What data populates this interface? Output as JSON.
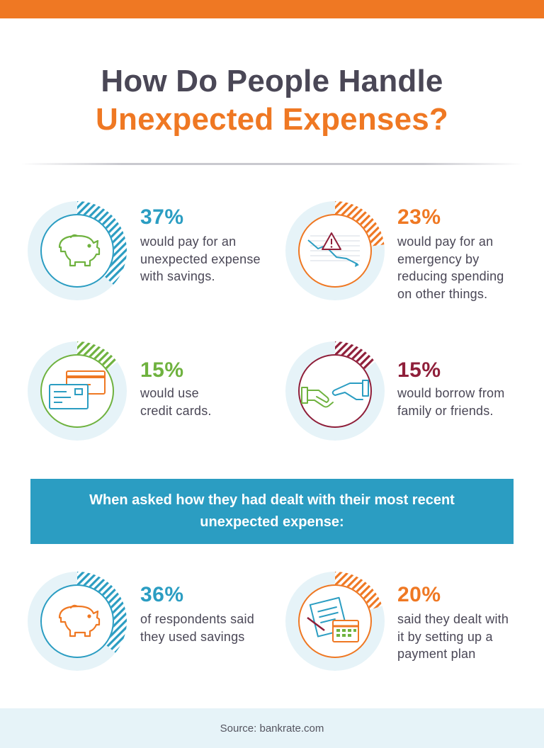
{
  "header": {
    "title_line1": "How Do People Handle",
    "title_line2": "Unexpected Expenses?"
  },
  "colors": {
    "blue": "#2b9dc2",
    "orange": "#ef7823",
    "green": "#6fb23f",
    "maroon": "#8f1f3a",
    "dark_text": "#4a4756",
    "light_circle": "#e6f3f8"
  },
  "stats": [
    {
      "percent": "37%",
      "text": "would pay for an\nunexpected expense\nwith savings.",
      "icon": "piggy-bank-icon",
      "color": "#2b9dc2",
      "value": 37
    },
    {
      "percent": "23%",
      "text": "would pay for an\nemergency by\nreducing spending\non other things.",
      "icon": "warning-chart-icon",
      "color": "#ef7823",
      "value": 23
    },
    {
      "percent": "15%",
      "text": "would use\ncredit cards.",
      "icon": "credit-cards-icon",
      "color": "#6fb23f",
      "value": 15
    },
    {
      "percent": "15%",
      "text": "would borrow from\nfamily or friends.",
      "icon": "handshake-icon",
      "color": "#8f1f3a",
      "value": 15
    }
  ],
  "banner": {
    "text": "When asked how they had dealt with their most recent\nunexpected expense:"
  },
  "recent": [
    {
      "percent": "36%",
      "text": "of respondents said\nthey used savings",
      "icon": "piggy-bank-icon",
      "color": "#2b9dc2",
      "value": 36
    },
    {
      "percent": "20%",
      "text": "said they dealt with\nit by setting up a\npayment plan",
      "icon": "payment-plan-icon",
      "color": "#ef7823",
      "value": 20
    }
  ],
  "footer": {
    "source": "Source: bankrate.com"
  }
}
